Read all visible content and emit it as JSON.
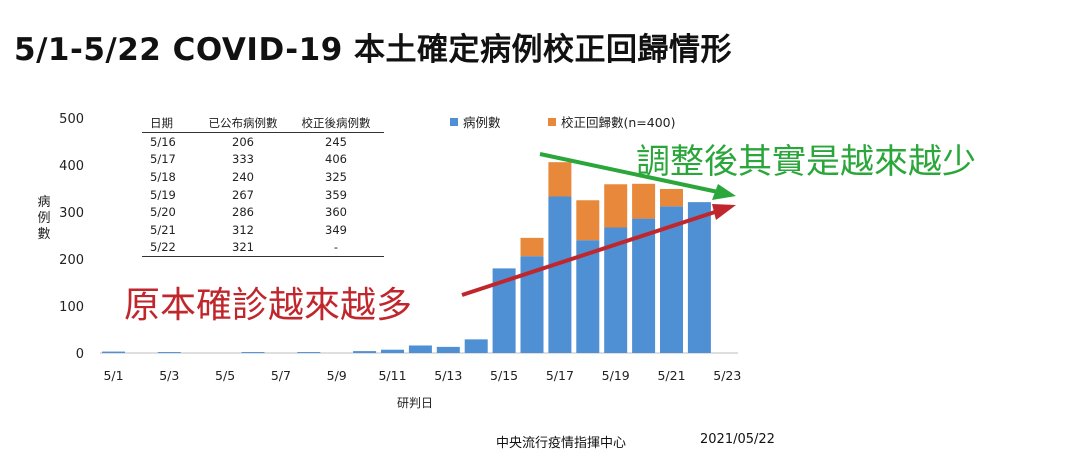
{
  "page_title": "5/1-5/22 COVID-19 本土確定病例校正回歸情形",
  "footer": {
    "org": "中央流行疫情指揮中心",
    "date": "2021/05/22"
  },
  "annotations": {
    "green_text": "調整後其實是越來越少",
    "red_text": "原本確診越來越多",
    "green_color": "#2aa63a",
    "red_color": "#c0272d"
  },
  "table": {
    "headers": [
      "日期",
      "已公布病例數",
      "校正後病例數"
    ],
    "rows": [
      [
        "5/16",
        "206",
        "245"
      ],
      [
        "5/17",
        "333",
        "406"
      ],
      [
        "5/18",
        "240",
        "325"
      ],
      [
        "5/19",
        "267",
        "359"
      ],
      [
        "5/20",
        "286",
        "360"
      ],
      [
        "5/21",
        "312",
        "349"
      ],
      [
        "5/22",
        "321",
        "-"
      ]
    ]
  },
  "chart_data": {
    "type": "bar",
    "stacked": true,
    "categories": [
      "5/1",
      "5/2",
      "5/3",
      "5/4",
      "5/5",
      "5/6",
      "5/7",
      "5/8",
      "5/9",
      "5/10",
      "5/11",
      "5/12",
      "5/13",
      "5/14",
      "5/15",
      "5/16",
      "5/17",
      "5/18",
      "5/19",
      "5/20",
      "5/21",
      "5/22"
    ],
    "x_tick_labels": [
      "5/1",
      "5/3",
      "5/5",
      "5/7",
      "5/9",
      "5/11",
      "5/13",
      "5/15",
      "5/17",
      "5/19",
      "5/21",
      "5/23"
    ],
    "series": [
      {
        "name": "病例數",
        "color": "#4f8fd4",
        "values": [
          3,
          0,
          2,
          0,
          0,
          2,
          0,
          2,
          0,
          4,
          7,
          16,
          13,
          29,
          180,
          206,
          333,
          240,
          267,
          286,
          312,
          321
        ]
      },
      {
        "name": "校正回歸數(n=400)",
        "color": "#e8883a",
        "values": [
          0,
          0,
          0,
          0,
          0,
          0,
          0,
          0,
          0,
          0,
          0,
          0,
          0,
          0,
          0,
          39,
          73,
          85,
          92,
          74,
          37,
          0
        ]
      }
    ],
    "xlabel": "研判日",
    "ylabel": "病例數",
    "ylim": [
      0,
      500
    ],
    "yticks": [
      0,
      100,
      200,
      300,
      400,
      500
    ],
    "grid": false,
    "legend_position": "top-right"
  }
}
